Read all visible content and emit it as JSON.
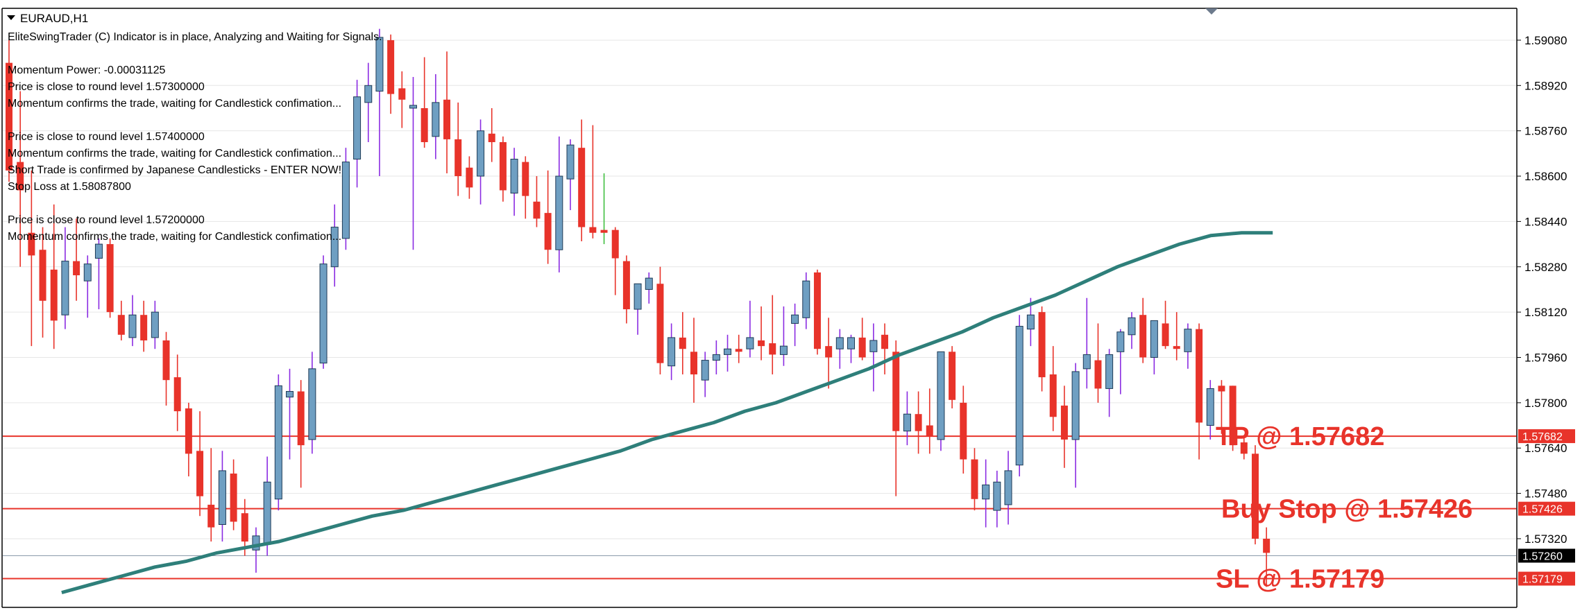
{
  "window": {
    "title": "EURAUD,H1",
    "collapse_icon": "triangle-down-icon"
  },
  "indicator_text": [
    "EliteSwingTrader (C) Indicator is in place, Analyzing and Waiting for Signals.",
    "",
    "Momentum Power: -0.00031125",
    "Price is close to round level 1.57300000",
    "Momentum confirms the trade, waiting for Candlestick confimation...",
    "",
    "Price is close to round level 1.57400000",
    "Momentum confirms the trade, waiting for Candlestick confimation...",
    "Short Trade is confirmed by Japanese Candlesticks - ENTER NOW!",
    "Stop Loss at 1.58087800",
    "",
    "Price is close to round level 1.57200000",
    "Momentum confirms the trade, waiting for Candlestick confimation..."
  ],
  "price_axis": {
    "labels": [
      "1.59080",
      "1.58920",
      "1.58760",
      "1.58600",
      "1.58440",
      "1.58280",
      "1.58120",
      "1.57960",
      "1.57800",
      "1.57640",
      "1.57480",
      "1.57320"
    ],
    "values": [
      1.5908,
      1.5892,
      1.5876,
      1.586,
      1.5844,
      1.5828,
      1.5812,
      1.5796,
      1.578,
      1.5764,
      1.5748,
      1.5732
    ]
  },
  "levels": [
    {
      "name": "tp",
      "price": 1.57682,
      "tag": "1.57682",
      "annotation": "TP @ 1.57682",
      "color": "#e8332a"
    },
    {
      "name": "buy-stop",
      "price": 1.57426,
      "tag": "1.57426",
      "annotation": "Buy Stop @ 1.57426",
      "color": "#e8332a"
    },
    {
      "name": "sl",
      "price": 1.57179,
      "tag": "1.57179",
      "annotation": "SL @ 1.57179",
      "color": "#e8332a"
    },
    {
      "name": "bid",
      "price": 1.5726,
      "tag": "1.57260",
      "annotation": "",
      "color": "#000000"
    }
  ],
  "colors": {
    "bull_fill": "#6f9fc2",
    "bull_border": "#1e3a56",
    "bear": "#e8332a",
    "wick_purple": "#8a2be2",
    "wick_green": "#3fbf3f",
    "moving_average": "#2e7f7a",
    "grid": "#e6e6e6"
  },
  "chart_data": {
    "type": "candlestick",
    "symbol": "EURAUD",
    "timeframe": "H1",
    "ylim": [
      1.5708,
      1.5919
    ],
    "candles": [
      {
        "o": 1.59,
        "h": 1.5908,
        "l": 1.5858,
        "c": 1.5862
      },
      {
        "o": 1.5865,
        "h": 1.589,
        "l": 1.5828,
        "c": 1.5855
      },
      {
        "o": 1.584,
        "h": 1.5862,
        "l": 1.58,
        "c": 1.5832
      },
      {
        "o": 1.5834,
        "h": 1.5842,
        "l": 1.5803,
        "c": 1.5816
      },
      {
        "o": 1.5827,
        "h": 1.585,
        "l": 1.5799,
        "c": 1.5809
      },
      {
        "o": 1.5811,
        "h": 1.5842,
        "l": 1.5806,
        "c": 1.583
      },
      {
        "o": 1.583,
        "h": 1.5845,
        "l": 1.5816,
        "c": 1.5825
      },
      {
        "o": 1.5823,
        "h": 1.5832,
        "l": 1.581,
        "c": 1.5829
      },
      {
        "o": 1.5831,
        "h": 1.5838,
        "l": 1.5813,
        "c": 1.5836
      },
      {
        "o": 1.5836,
        "h": 1.5838,
        "l": 1.581,
        "c": 1.5812
      },
      {
        "o": 1.5811,
        "h": 1.5816,
        "l": 1.5802,
        "c": 1.5804
      },
      {
        "o": 1.5803,
        "h": 1.5818,
        "l": 1.58,
        "c": 1.5811
      },
      {
        "o": 1.5811,
        "h": 1.5816,
        "l": 1.5798,
        "c": 1.5802
      },
      {
        "o": 1.5803,
        "h": 1.5816,
        "l": 1.5799,
        "c": 1.5812
      },
      {
        "o": 1.5802,
        "h": 1.5805,
        "l": 1.5779,
        "c": 1.5788
      },
      {
        "o": 1.5789,
        "h": 1.5797,
        "l": 1.577,
        "c": 1.5777
      },
      {
        "o": 1.5778,
        "h": 1.578,
        "l": 1.5754,
        "c": 1.5762
      },
      {
        "o": 1.5763,
        "h": 1.5777,
        "l": 1.574,
        "c": 1.5747
      },
      {
        "o": 1.5744,
        "h": 1.5764,
        "l": 1.5731,
        "c": 1.5736
      },
      {
        "o": 1.5737,
        "h": 1.5763,
        "l": 1.5731,
        "c": 1.5756
      },
      {
        "o": 1.5755,
        "h": 1.576,
        "l": 1.5735,
        "c": 1.5738
      },
      {
        "o": 1.5741,
        "h": 1.5746,
        "l": 1.5726,
        "c": 1.5731
      },
      {
        "o": 1.5728,
        "h": 1.5736,
        "l": 1.572,
        "c": 1.5733
      },
      {
        "o": 1.573,
        "h": 1.5761,
        "l": 1.5726,
        "c": 1.5752
      },
      {
        "o": 1.5746,
        "h": 1.579,
        "l": 1.5742,
        "c": 1.5786
      },
      {
        "o": 1.5782,
        "h": 1.5792,
        "l": 1.576,
        "c": 1.5784
      },
      {
        "o": 1.5784,
        "h": 1.5788,
        "l": 1.575,
        "c": 1.5765
      },
      {
        "o": 1.5767,
        "h": 1.5798,
        "l": 1.5762,
        "c": 1.5792
      },
      {
        "o": 1.5794,
        "h": 1.5832,
        "l": 1.5792,
        "c": 1.5829
      },
      {
        "o": 1.5828,
        "h": 1.585,
        "l": 1.5821,
        "c": 1.5842
      },
      {
        "o": 1.5838,
        "h": 1.587,
        "l": 1.5834,
        "c": 1.5865
      },
      {
        "o": 1.5866,
        "h": 1.5894,
        "l": 1.5856,
        "c": 1.5888
      },
      {
        "o": 1.5886,
        "h": 1.59,
        "l": 1.5872,
        "c": 1.5892
      },
      {
        "o": 1.589,
        "h": 1.5912,
        "l": 1.586,
        "c": 1.5909
      },
      {
        "o": 1.5908,
        "h": 1.591,
        "l": 1.5882,
        "c": 1.5889
      },
      {
        "o": 1.5891,
        "h": 1.5897,
        "l": 1.5877,
        "c": 1.5887
      },
      {
        "o": 1.5884,
        "h": 1.5895,
        "l": 1.5834,
        "c": 1.5885
      },
      {
        "o": 1.5884,
        "h": 1.5902,
        "l": 1.587,
        "c": 1.5872
      },
      {
        "o": 1.5874,
        "h": 1.5896,
        "l": 1.5866,
        "c": 1.5886
      },
      {
        "o": 1.5887,
        "h": 1.5904,
        "l": 1.5861,
        "c": 1.5873
      },
      {
        "o": 1.5873,
        "h": 1.5886,
        "l": 1.5853,
        "c": 1.586
      },
      {
        "o": 1.5863,
        "h": 1.5867,
        "l": 1.5852,
        "c": 1.5856
      },
      {
        "o": 1.586,
        "h": 1.588,
        "l": 1.585,
        "c": 1.5876
      },
      {
        "o": 1.5875,
        "h": 1.5884,
        "l": 1.5865,
        "c": 1.5872
      },
      {
        "o": 1.5872,
        "h": 1.5874,
        "l": 1.5851,
        "c": 1.5855
      },
      {
        "o": 1.5854,
        "h": 1.587,
        "l": 1.5846,
        "c": 1.5866
      },
      {
        "o": 1.5865,
        "h": 1.5867,
        "l": 1.5845,
        "c": 1.5853
      },
      {
        "o": 1.5851,
        "h": 1.586,
        "l": 1.5842,
        "c": 1.5845
      },
      {
        "o": 1.5847,
        "h": 1.5862,
        "l": 1.5829,
        "c": 1.5834
      },
      {
        "o": 1.5834,
        "h": 1.5874,
        "l": 1.5826,
        "c": 1.586
      },
      {
        "o": 1.5859,
        "h": 1.5873,
        "l": 1.5848,
        "c": 1.5871
      },
      {
        "o": 1.587,
        "h": 1.588,
        "l": 1.5837,
        "c": 1.5842
      },
      {
        "o": 1.5842,
        "h": 1.5878,
        "l": 1.5838,
        "c": 1.584
      },
      {
        "o": 1.5841,
        "h": 1.5861,
        "l": 1.5836,
        "c": 1.584
      },
      {
        "o": 1.5841,
        "h": 1.5842,
        "l": 1.5818,
        "c": 1.5831
      },
      {
        "o": 1.583,
        "h": 1.5832,
        "l": 1.5808,
        "c": 1.5813
      },
      {
        "o": 1.5813,
        "h": 1.582,
        "l": 1.5804,
        "c": 1.5822
      },
      {
        "o": 1.582,
        "h": 1.5826,
        "l": 1.5815,
        "c": 1.5824
      },
      {
        "o": 1.5822,
        "h": 1.5828,
        "l": 1.579,
        "c": 1.5794
      },
      {
        "o": 1.5793,
        "h": 1.5808,
        "l": 1.5788,
        "c": 1.5803
      },
      {
        "o": 1.5803,
        "h": 1.5812,
        "l": 1.579,
        "c": 1.5799
      },
      {
        "o": 1.5798,
        "h": 1.581,
        "l": 1.578,
        "c": 1.579
      },
      {
        "o": 1.5788,
        "h": 1.5798,
        "l": 1.5782,
        "c": 1.5795
      },
      {
        "o": 1.5795,
        "h": 1.5802,
        "l": 1.579,
        "c": 1.5797
      },
      {
        "o": 1.5797,
        "h": 1.5804,
        "l": 1.5791,
        "c": 1.5799
      },
      {
        "o": 1.5799,
        "h": 1.5804,
        "l": 1.5794,
        "c": 1.5798
      },
      {
        "o": 1.5799,
        "h": 1.5816,
        "l": 1.5796,
        "c": 1.5803
      },
      {
        "o": 1.5802,
        "h": 1.5814,
        "l": 1.5795,
        "c": 1.58
      },
      {
        "o": 1.5801,
        "h": 1.5818,
        "l": 1.579,
        "c": 1.5797
      },
      {
        "o": 1.5797,
        "h": 1.5814,
        "l": 1.5793,
        "c": 1.58
      },
      {
        "o": 1.5808,
        "h": 1.5815,
        "l": 1.58,
        "c": 1.5811
      },
      {
        "o": 1.581,
        "h": 1.5826,
        "l": 1.5806,
        "c": 1.5823
      },
      {
        "o": 1.5826,
        "h": 1.5827,
        "l": 1.5797,
        "c": 1.5799
      },
      {
        "o": 1.58,
        "h": 1.581,
        "l": 1.5785,
        "c": 1.5796
      },
      {
        "o": 1.5799,
        "h": 1.5806,
        "l": 1.5792,
        "c": 1.5803
      },
      {
        "o": 1.5799,
        "h": 1.5804,
        "l": 1.5794,
        "c": 1.5803
      },
      {
        "o": 1.5803,
        "h": 1.581,
        "l": 1.5795,
        "c": 1.5796
      },
      {
        "o": 1.5798,
        "h": 1.5808,
        "l": 1.5784,
        "c": 1.5802
      },
      {
        "o": 1.5804,
        "h": 1.5808,
        "l": 1.579,
        "c": 1.5799
      },
      {
        "o": 1.5798,
        "h": 1.5802,
        "l": 1.5747,
        "c": 1.577
      },
      {
        "o": 1.577,
        "h": 1.5784,
        "l": 1.5765,
        "c": 1.5776
      },
      {
        "o": 1.5776,
        "h": 1.5784,
        "l": 1.5762,
        "c": 1.577
      },
      {
        "o": 1.5772,
        "h": 1.5785,
        "l": 1.5762,
        "c": 1.5768
      },
      {
        "o": 1.5767,
        "h": 1.5798,
        "l": 1.5763,
        "c": 1.5798
      },
      {
        "o": 1.5798,
        "h": 1.58,
        "l": 1.5778,
        "c": 1.5781
      },
      {
        "o": 1.578,
        "h": 1.5786,
        "l": 1.5755,
        "c": 1.576
      },
      {
        "o": 1.576,
        "h": 1.5764,
        "l": 1.5742,
        "c": 1.5746
      },
      {
        "o": 1.5746,
        "h": 1.576,
        "l": 1.5736,
        "c": 1.5751
      },
      {
        "o": 1.5742,
        "h": 1.5756,
        "l": 1.5736,
        "c": 1.5752
      },
      {
        "o": 1.5744,
        "h": 1.5763,
        "l": 1.5737,
        "c": 1.5756
      },
      {
        "o": 1.5758,
        "h": 1.5811,
        "l": 1.5754,
        "c": 1.5807
      },
      {
        "o": 1.5806,
        "h": 1.5817,
        "l": 1.58,
        "c": 1.5811
      },
      {
        "o": 1.5812,
        "h": 1.5814,
        "l": 1.5784,
        "c": 1.5789
      },
      {
        "o": 1.579,
        "h": 1.58,
        "l": 1.577,
        "c": 1.5775
      },
      {
        "o": 1.5779,
        "h": 1.5786,
        "l": 1.5757,
        "c": 1.5767
      },
      {
        "o": 1.5767,
        "h": 1.5794,
        "l": 1.575,
        "c": 1.5791
      },
      {
        "o": 1.5792,
        "h": 1.5817,
        "l": 1.5785,
        "c": 1.5797
      },
      {
        "o": 1.5795,
        "h": 1.5808,
        "l": 1.578,
        "c": 1.5785
      },
      {
        "o": 1.5785,
        "h": 1.5799,
        "l": 1.5775,
        "c": 1.5797
      },
      {
        "o": 1.5798,
        "h": 1.5806,
        "l": 1.5783,
        "c": 1.5805
      },
      {
        "o": 1.5804,
        "h": 1.5812,
        "l": 1.5799,
        "c": 1.581
      },
      {
        "o": 1.5811,
        "h": 1.5817,
        "l": 1.5794,
        "c": 1.5796
      },
      {
        "o": 1.5796,
        "h": 1.5808,
        "l": 1.579,
        "c": 1.5809
      },
      {
        "o": 1.5808,
        "h": 1.5816,
        "l": 1.5799,
        "c": 1.58
      },
      {
        "o": 1.58,
        "h": 1.5812,
        "l": 1.5795,
        "c": 1.5799
      },
      {
        "o": 1.5798,
        "h": 1.5808,
        "l": 1.5792,
        "c": 1.5806
      },
      {
        "o": 1.5806,
        "h": 1.5808,
        "l": 1.576,
        "c": 1.5773
      },
      {
        "o": 1.5772,
        "h": 1.5788,
        "l": 1.5767,
        "c": 1.5785
      },
      {
        "o": 1.5786,
        "h": 1.5788,
        "l": 1.5769,
        "c": 1.5784
      },
      {
        "o": 1.5786,
        "h": 1.5786,
        "l": 1.5763,
        "c": 1.5765
      },
      {
        "o": 1.5766,
        "h": 1.5768,
        "l": 1.576,
        "c": 1.5762
      },
      {
        "o": 1.5762,
        "h": 1.5765,
        "l": 1.573,
        "c": 1.5732
      },
      {
        "o": 1.5732,
        "h": 1.5736,
        "l": 1.5715,
        "c": 1.5727
      }
    ],
    "moving_average": {
      "start_index": 5,
      "values": [
        1.5713,
        1.5716,
        1.5719,
        1.5722,
        1.5724,
        1.5727,
        1.5729,
        1.5731,
        1.5734,
        1.5737,
        1.574,
        1.5742,
        1.5745,
        1.5748,
        1.5751,
        1.5754,
        1.5757,
        1.576,
        1.5763,
        1.5767,
        1.577,
        1.5773,
        1.5777,
        1.578,
        1.5784,
        1.5788,
        1.5792,
        1.5797,
        1.5801,
        1.5805,
        1.581,
        1.5814,
        1.5818,
        1.5823,
        1.5828,
        1.5832,
        1.5836,
        1.5839,
        1.584,
        1.584
      ]
    }
  }
}
